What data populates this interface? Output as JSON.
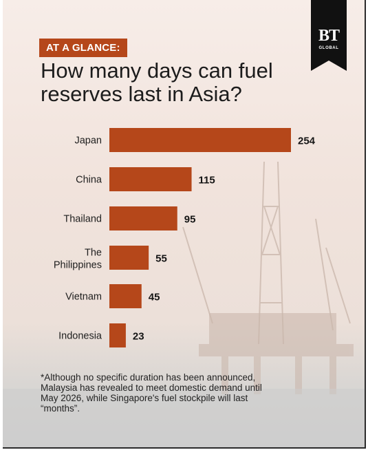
{
  "header": {
    "badge": "AT A GLANCE:",
    "title": "How many days can fuel reserves last in Asia?"
  },
  "logo": {
    "mark": "BT",
    "sub": "GLOBAL"
  },
  "chart_data": {
    "type": "bar",
    "orientation": "horizontal",
    "title": "How many days can fuel reserves last in Asia?",
    "categories": [
      "Japan",
      "China",
      "Thailand",
      "The Philippines",
      "Vietnam",
      "Indonesia"
    ],
    "values": [
      254,
      115,
      95,
      55,
      45,
      23
    ],
    "value_labels": [
      "254",
      "115",
      "95",
      "55",
      "45",
      "23"
    ],
    "xlim": [
      0,
      254
    ],
    "grid": false,
    "legend": "none",
    "bar_color": "#b5471a"
  },
  "footnote": "*Although no specific duration has been announced, Malaysia has revealed to meet domestic demand until May 2026, while Singapore's fuel stockpile will last “months”.",
  "colors": {
    "accent": "#b5471a",
    "logo_bg": "#111111"
  }
}
